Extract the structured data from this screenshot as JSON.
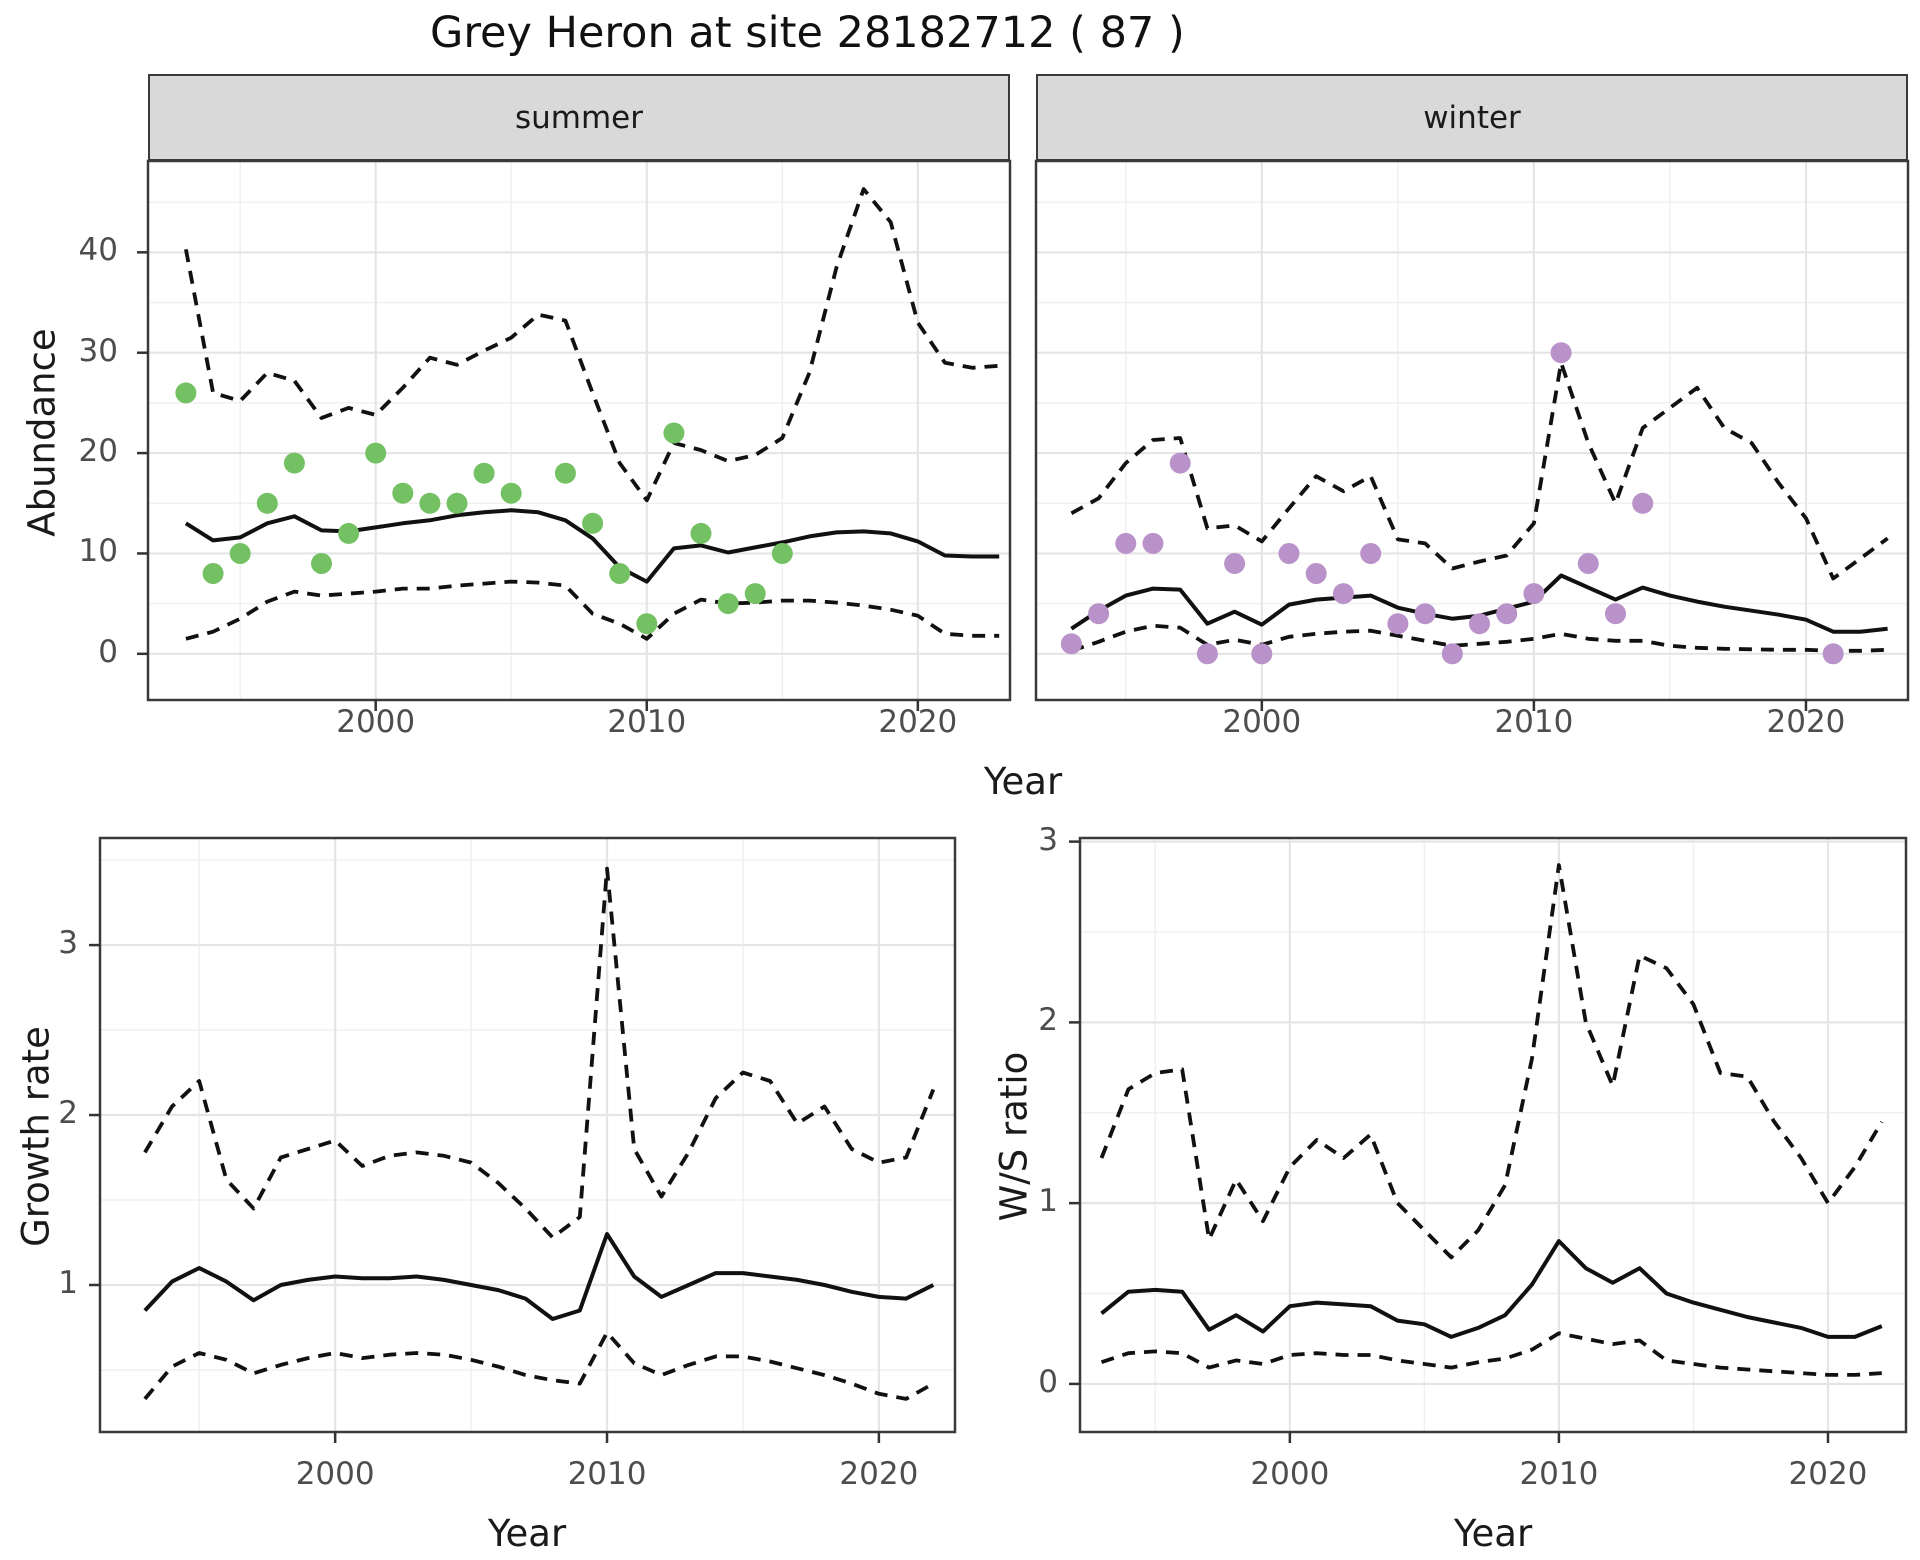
{
  "title": "Grey Heron at site 28182712 ( 87 )",
  "colors": {
    "summer_points": "#74c164",
    "winter_points": "#b892c8",
    "line": "#111111",
    "grid_major": "#e5e5e5",
    "grid_minor": "#f0f0f0",
    "panel_border": "#3a3a3a",
    "strip_background": "#d9d9d9",
    "tick_text": "#4d4d4d"
  },
  "chart_data": [
    {
      "type": "line",
      "panel": "abundance-summer",
      "facet_label": "summer",
      "ylabel": "Abundance",
      "xlabel": "Year",
      "x_ticks": [
        2000,
        2010,
        2020
      ],
      "x_minor": [
        1995,
        2005,
        2015
      ],
      "y_ticks": [
        0,
        10,
        20,
        30,
        40
      ],
      "y_minor": [
        5,
        15,
        25,
        35,
        45
      ],
      "xlim": [
        1991.6,
        2023.4
      ],
      "ylim": [
        -4.6,
        49.1
      ],
      "grid": true,
      "legend": "none",
      "years": [
        1993,
        1994,
        1995,
        1996,
        1997,
        1998,
        1999,
        2000,
        2001,
        2002,
        2003,
        2004,
        2005,
        2006,
        2007,
        2008,
        2009,
        2010,
        2011,
        2012,
        2013,
        2014,
        2015,
        2016,
        2017,
        2018,
        2019,
        2020,
        2021,
        2022,
        2023
      ],
      "fit": [
        13.0,
        11.3,
        11.6,
        13.0,
        13.7,
        12.3,
        12.2,
        12.6,
        13.0,
        13.3,
        13.8,
        14.1,
        14.3,
        14.1,
        13.3,
        11.5,
        8.6,
        7.2,
        10.5,
        10.8,
        10.1,
        10.6,
        11.1,
        11.7,
        12.1,
        12.2,
        12.0,
        11.2,
        9.8,
        9.7,
        9.7
      ],
      "upper": [
        40.3,
        26.0,
        25.2,
        28.0,
        27.2,
        23.5,
        24.5,
        23.8,
        26.5,
        29.5,
        28.8,
        30.2,
        31.5,
        33.8,
        33.2,
        26.0,
        19.0,
        15.3,
        21.0,
        20.3,
        19.2,
        19.8,
        21.5,
        28.0,
        38.5,
        46.3,
        43.0,
        33.0,
        29.0,
        28.5,
        28.7
      ],
      "lower": [
        1.5,
        2.2,
        3.5,
        5.2,
        6.2,
        5.8,
        6.0,
        6.2,
        6.5,
        6.5,
        6.8,
        7.0,
        7.2,
        7.1,
        6.8,
        4.0,
        3.0,
        1.5,
        4.0,
        5.4,
        5.0,
        5.1,
        5.3,
        5.3,
        5.1,
        4.8,
        4.4,
        3.8,
        2.0,
        1.8,
        1.8
      ],
      "points": {
        "years": [
          1993,
          1994,
          1995,
          1996,
          1997,
          1998,
          1999,
          2000,
          2001,
          2002,
          2003,
          2004,
          2005,
          2007,
          2008,
          2009,
          2010,
          2011,
          2012,
          2013,
          2014,
          2015
        ],
        "values": [
          26,
          8,
          10,
          15,
          19,
          9,
          12,
          20,
          16,
          15,
          15,
          18,
          16,
          18,
          13,
          8,
          3,
          22,
          12,
          5,
          6,
          10
        ]
      },
      "point_color": "#74c164"
    },
    {
      "type": "line",
      "panel": "abundance-winter",
      "facet_label": "winter",
      "ylabel": "Abundance",
      "xlabel": "Year",
      "x_ticks": [
        2000,
        2010,
        2020
      ],
      "x_minor": [
        1995,
        2005,
        2015
      ],
      "y_ticks": [
        0,
        10,
        20,
        30,
        40
      ],
      "y_minor": [
        5,
        15,
        25,
        35,
        45
      ],
      "xlim": [
        1991.7,
        2023.75
      ],
      "ylim": [
        -4.6,
        49.1
      ],
      "grid": true,
      "legend": "none",
      "years": [
        1993,
        1994,
        1995,
        1996,
        1997,
        1998,
        1999,
        2000,
        2001,
        2002,
        2003,
        2004,
        2005,
        2006,
        2007,
        2008,
        2009,
        2010,
        2011,
        2012,
        2013,
        2014,
        2015,
        2016,
        2017,
        2018,
        2019,
        2020,
        2021,
        2022,
        2023
      ],
      "fit": [
        2.5,
        4.3,
        5.8,
        6.5,
        6.4,
        3.0,
        4.2,
        2.9,
        4.9,
        5.4,
        5.6,
        5.8,
        4.6,
        4.0,
        3.5,
        3.8,
        4.5,
        5.2,
        7.8,
        6.6,
        5.4,
        6.6,
        5.8,
        5.2,
        4.7,
        4.3,
        3.9,
        3.4,
        2.2,
        2.2,
        2.5
      ],
      "upper": [
        14.0,
        15.5,
        19.0,
        21.3,
        21.5,
        12.5,
        12.8,
        11.2,
        14.5,
        17.7,
        16.2,
        17.7,
        11.4,
        11.0,
        8.5,
        9.2,
        9.8,
        13.0,
        29.0,
        21.0,
        15.0,
        22.5,
        24.5,
        26.5,
        22.5,
        21.0,
        17.0,
        13.5,
        7.5,
        9.5,
        11.5
      ],
      "lower": [
        0.3,
        1.2,
        2.2,
        2.8,
        2.6,
        0.9,
        1.4,
        0.9,
        1.7,
        2.0,
        2.2,
        2.3,
        1.8,
        1.3,
        0.8,
        1.0,
        1.2,
        1.5,
        2.0,
        1.5,
        1.3,
        1.3,
        0.8,
        0.6,
        0.5,
        0.45,
        0.4,
        0.4,
        0.3,
        0.3,
        0.4
      ],
      "points": {
        "years": [
          1993,
          1994,
          1995,
          1996,
          1997,
          1998,
          1999,
          2000,
          2001,
          2002,
          2003,
          2004,
          2005,
          2006,
          2007,
          2008,
          2009,
          2010,
          2011,
          2012,
          2013,
          2014,
          2021
        ],
        "values": [
          1,
          4,
          11,
          11,
          19,
          0,
          9,
          0,
          10,
          8,
          6,
          10,
          3,
          4,
          0,
          3,
          4,
          6,
          30,
          9,
          4,
          15,
          0
        ]
      },
      "point_color": "#b892c8"
    },
    {
      "type": "line",
      "panel": "growth-rate",
      "facet_label": "",
      "ylabel": "Growth rate",
      "xlabel": "Year",
      "x_ticks": [
        2000,
        2010,
        2020
      ],
      "x_minor": [
        1995,
        2005,
        2015
      ],
      "y_ticks": [
        1,
        2,
        3
      ],
      "y_minor": [
        0.5,
        1.5,
        2.5,
        3.5
      ],
      "xlim": [
        1991.35,
        2022.8
      ],
      "ylim": [
        0.135,
        3.63
      ],
      "grid": true,
      "legend": "none",
      "years": [
        1993,
        1994,
        1995,
        1996,
        1997,
        1998,
        1999,
        2000,
        2001,
        2002,
        2003,
        2004,
        2005,
        2006,
        2007,
        2008,
        2009,
        2010,
        2011,
        2012,
        2013,
        2014,
        2015,
        2016,
        2017,
        2018,
        2019,
        2020,
        2021,
        2022
      ],
      "fit": [
        0.85,
        1.02,
        1.1,
        1.02,
        0.91,
        1.0,
        1.03,
        1.05,
        1.04,
        1.04,
        1.05,
        1.03,
        1.0,
        0.97,
        0.92,
        0.8,
        0.85,
        1.3,
        1.05,
        0.93,
        1.0,
        1.07,
        1.07,
        1.05,
        1.03,
        1.0,
        0.96,
        0.93,
        0.92,
        1.0
      ],
      "upper": [
        1.78,
        2.05,
        2.2,
        1.62,
        1.45,
        1.75,
        1.8,
        1.85,
        1.7,
        1.76,
        1.78,
        1.76,
        1.72,
        1.6,
        1.45,
        1.28,
        1.4,
        3.45,
        1.8,
        1.52,
        1.78,
        2.1,
        2.25,
        2.2,
        1.95,
        2.05,
        1.8,
        1.72,
        1.75,
        2.15
      ],
      "lower": [
        0.33,
        0.52,
        0.6,
        0.56,
        0.48,
        0.53,
        0.57,
        0.6,
        0.57,
        0.59,
        0.6,
        0.59,
        0.56,
        0.52,
        0.47,
        0.44,
        0.42,
        0.72,
        0.54,
        0.47,
        0.53,
        0.58,
        0.58,
        0.55,
        0.51,
        0.47,
        0.42,
        0.36,
        0.33,
        0.42
      ],
      "points": {
        "years": [],
        "values": []
      },
      "point_color": "none"
    },
    {
      "type": "line",
      "panel": "ws-ratio",
      "facet_label": "",
      "ylabel": "W/S ratio",
      "xlabel": "Year",
      "x_ticks": [
        2000,
        2010,
        2020
      ],
      "x_minor": [
        1995,
        2005,
        2015
      ],
      "y_ticks": [
        0,
        1,
        2,
        3
      ],
      "y_minor": [
        0.5,
        1.5,
        2.5
      ],
      "xlim": [
        1992.2,
        2022.9
      ],
      "ylim": [
        -0.266,
        3.02
      ],
      "grid": true,
      "legend": "none",
      "years": [
        1993,
        1994,
        1995,
        1996,
        1997,
        1998,
        1999,
        2000,
        2001,
        2002,
        2003,
        2004,
        2005,
        2006,
        2007,
        2008,
        2009,
        2010,
        2011,
        2012,
        2013,
        2014,
        2015,
        2016,
        2017,
        2018,
        2019,
        2020,
        2021,
        2022
      ],
      "fit": [
        0.39,
        0.51,
        0.52,
        0.51,
        0.3,
        0.38,
        0.29,
        0.43,
        0.45,
        0.44,
        0.43,
        0.35,
        0.33,
        0.26,
        0.31,
        0.38,
        0.55,
        0.79,
        0.64,
        0.56,
        0.64,
        0.5,
        0.45,
        0.41,
        0.37,
        0.34,
        0.31,
        0.26,
        0.26,
        0.32
      ],
      "upper": [
        1.25,
        1.63,
        1.72,
        1.74,
        0.8,
        1.13,
        0.9,
        1.2,
        1.35,
        1.25,
        1.38,
        1.0,
        0.85,
        0.7,
        0.85,
        1.1,
        1.8,
        2.87,
        2.0,
        1.65,
        2.37,
        2.3,
        2.1,
        1.72,
        1.7,
        1.45,
        1.25,
        1.0,
        1.2,
        1.45
      ],
      "lower": [
        0.12,
        0.17,
        0.18,
        0.17,
        0.09,
        0.13,
        0.11,
        0.16,
        0.17,
        0.16,
        0.16,
        0.13,
        0.11,
        0.09,
        0.12,
        0.14,
        0.19,
        0.28,
        0.25,
        0.22,
        0.24,
        0.13,
        0.11,
        0.09,
        0.08,
        0.07,
        0.06,
        0.05,
        0.05,
        0.06
      ],
      "points": {
        "years": [],
        "values": []
      },
      "point_color": "none"
    }
  ]
}
